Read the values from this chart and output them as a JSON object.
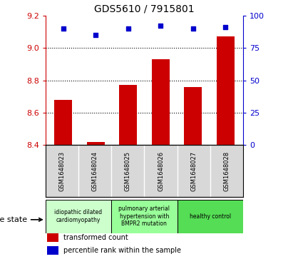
{
  "title": "GDS5610 / 7915801",
  "samples": [
    "GSM1648023",
    "GSM1648024",
    "GSM1648025",
    "GSM1648026",
    "GSM1648027",
    "GSM1648028"
  ],
  "transformed_counts": [
    8.68,
    8.42,
    8.77,
    8.93,
    8.76,
    9.07
  ],
  "percentile_ranks": [
    90,
    85,
    90,
    92,
    90,
    91
  ],
  "ylim_left": [
    8.4,
    9.2
  ],
  "ylim_right": [
    0,
    100
  ],
  "yticks_left": [
    8.4,
    8.6,
    8.8,
    9.0,
    9.2
  ],
  "yticks_right": [
    0,
    25,
    50,
    75,
    100
  ],
  "bar_color": "#cc0000",
  "dot_color": "#0000cc",
  "disease_groups": [
    {
      "label": "idiopathic dilated\ncardiomyopathy",
      "start": 0,
      "end": 2,
      "color": "#ccffcc"
    },
    {
      "label": "pulmonary arterial\nhypertension with\nBMPR2 mutation",
      "start": 2,
      "end": 4,
      "color": "#99ff99"
    },
    {
      "label": "healthy control",
      "start": 4,
      "end": 6,
      "color": "#55dd55"
    }
  ],
  "legend_items": [
    {
      "label": "transformed count",
      "color": "#cc0000"
    },
    {
      "label": "percentile rank within the sample",
      "color": "#0000cc"
    }
  ],
  "disease_state_label": "disease state",
  "grid_yticks": [
    8.6,
    8.8,
    9.0
  ],
  "bar_baseline": 8.4
}
